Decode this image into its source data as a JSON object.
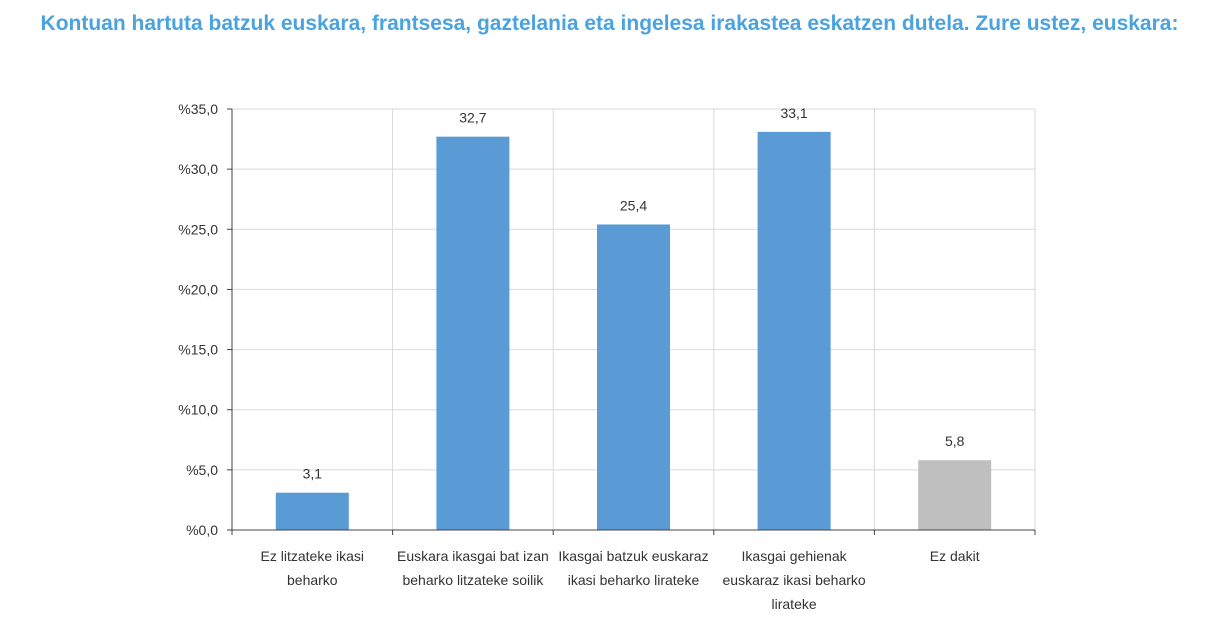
{
  "title": "Kontuan hartuta batzuk euskara, frantsesa, gaztelania eta ingelesa irakastea eskatzen dutela. Zure ustez, euskara:",
  "colors": {
    "primary": "#5b9bd5",
    "neutral": "#bfbfbf",
    "title": "#4aa3df"
  },
  "chart_data": {
    "type": "bar",
    "title": "Kontuan hartuta batzuk euskara, frantsesa, gaztelania eta ingelesa irakastea eskatzen dutela. Zure ustez, euskara:",
    "categories": [
      [
        "Ez litzateke ikasi",
        "beharko"
      ],
      [
        "Euskara ikasgai bat izan",
        "beharko litzateke soilik"
      ],
      [
        "Ikasgai batzuk euskaraz",
        "ikasi beharko lirateke"
      ],
      [
        "Ikasgai gehienak",
        "euskaraz ikasi beharko",
        "lirateke"
      ],
      [
        "Ez dakit"
      ]
    ],
    "values": [
      3.1,
      32.7,
      25.4,
      33.1,
      5.8
    ],
    "value_labels": [
      "3,1",
      "32,7",
      "25,4",
      "33,1",
      "5,8"
    ],
    "bar_colors": [
      "#5b9bd5",
      "#5b9bd5",
      "#5b9bd5",
      "#5b9bd5",
      "#bfbfbf"
    ],
    "y_ticks": [
      0,
      5,
      10,
      15,
      20,
      25,
      30,
      35
    ],
    "y_tick_labels": [
      "%0,0",
      "%5,0",
      "%10,0",
      "%15,0",
      "%20,0",
      "%25,0",
      "%30,0",
      "%35,0"
    ],
    "ylim": [
      0,
      35
    ],
    "grid": true,
    "xlabel": "",
    "ylabel": ""
  }
}
